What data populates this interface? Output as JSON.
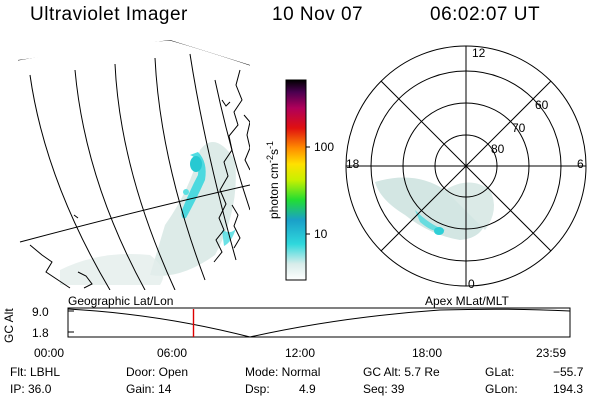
{
  "header": {
    "instrument": "Ultraviolet Imager",
    "date": "10 Nov 07",
    "time": "06:02:07 UT"
  },
  "colorbar": {
    "unit_label": "photon cm",
    "unit_exp1": "-2",
    "unit_mid": "s",
    "unit_exp2": "-1",
    "ticks": [
      "100",
      "10"
    ]
  },
  "polar": {
    "mlt_labels": {
      "top": "12",
      "left": "18",
      "right": "6",
      "bottom": "0"
    },
    "lat_labels": [
      "60",
      "70",
      "80"
    ]
  },
  "timeline": {
    "left_title": "Geographic Lat/Lon",
    "right_title": "Apex  MLat/MLT",
    "y_axis_label": "GC Alt",
    "y_ticks": [
      "9.0",
      "1.8"
    ],
    "x_ticks": [
      "00:00",
      "06:00",
      "12:00",
      "18:00",
      "23:59"
    ],
    "current_fraction": 0.25
  },
  "info": {
    "flt": "Flt: LBHL",
    "ip": "IP: 36.0",
    "door": "Door: Open",
    "gain": "Gain: 14",
    "mode": "Mode: Normal",
    "dsp_label": "Dsp:",
    "dsp_value": "4.9",
    "gc_alt": "GC Alt: 5.7 Re",
    "seq": "Seq: 39",
    "glat_label": "GLat:",
    "glat_value": "−55.7",
    "glon_label": "GLon:",
    "glon_value": "194.3"
  },
  "colors": {
    "auroral_cyan": "#33d6dd",
    "faint_glow": "#cfe3e0",
    "marker_red": "#dd0000"
  }
}
